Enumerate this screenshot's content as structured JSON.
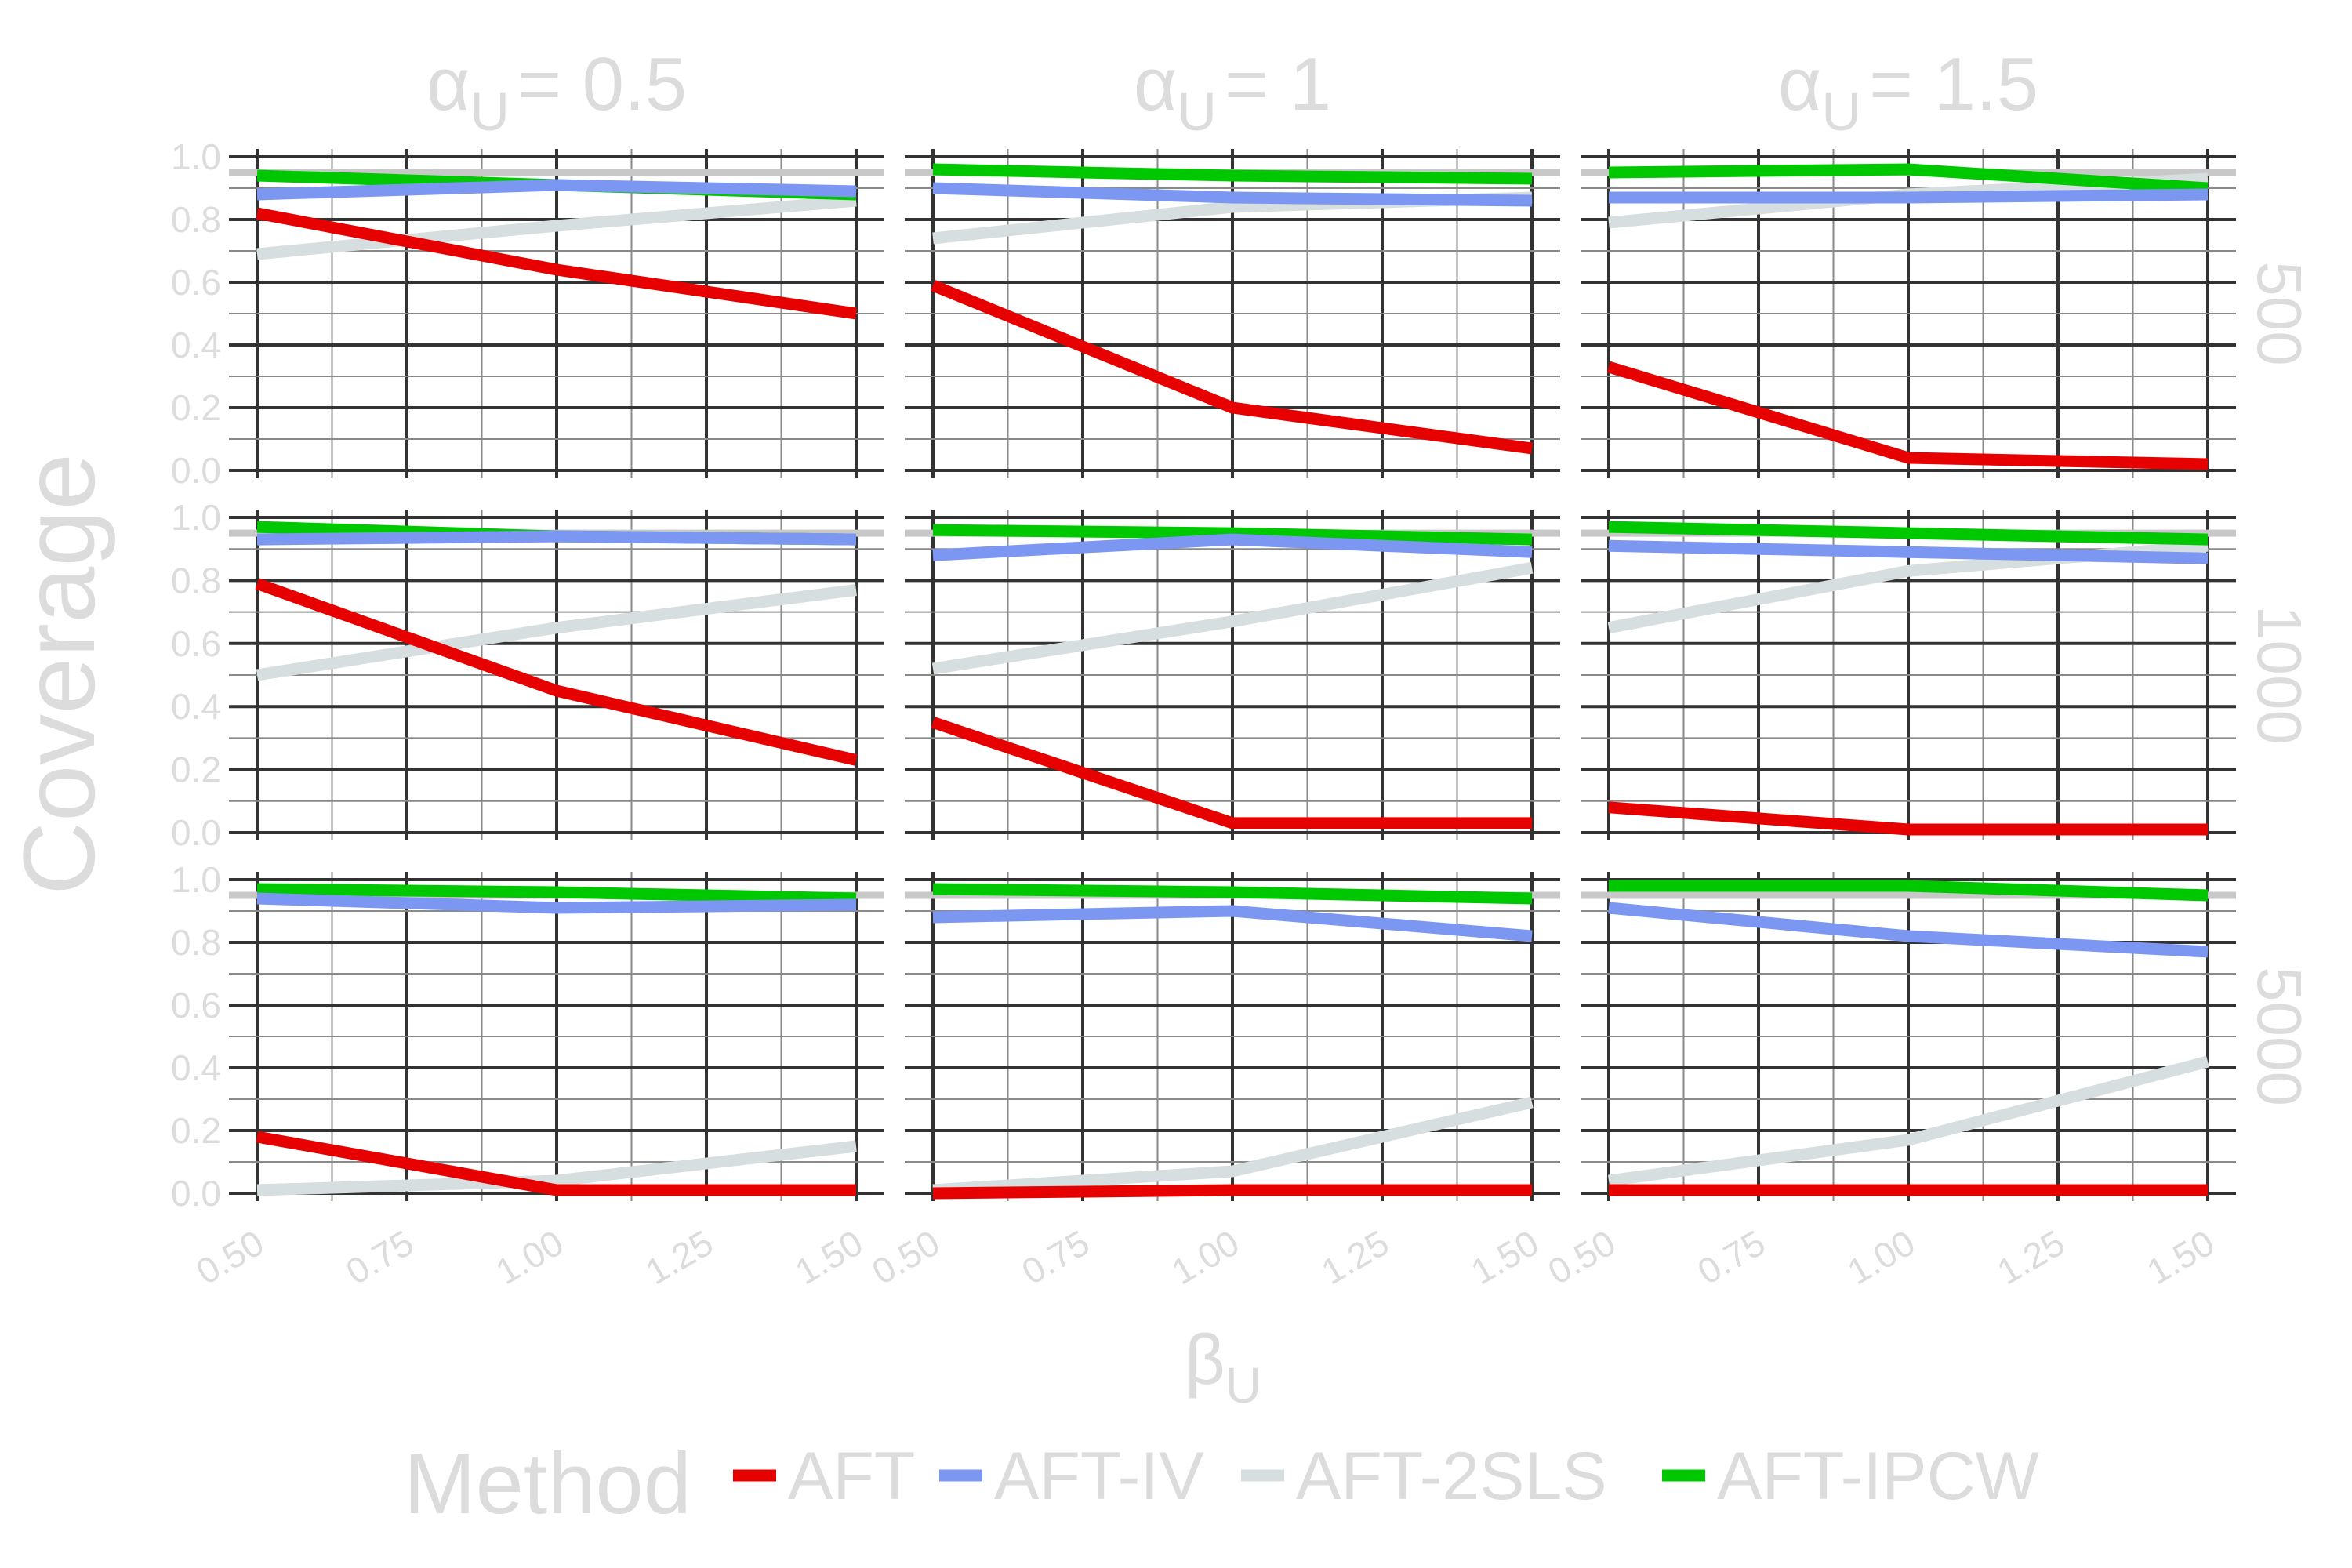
{
  "chart_data": {
    "type": "line",
    "xlabel": "β",
    "xlabel_sub": "U",
    "ylabel": "Coverage",
    "ylim": [
      0,
      1
    ],
    "y_ticks": [
      "0.0",
      "0.2",
      "0.4",
      "0.6",
      "0.8",
      "1.0"
    ],
    "x_ticks": [
      "0.50",
      "0.75",
      "1.00",
      "1.25",
      "1.50"
    ],
    "x_tick_values": [
      0.5,
      0.75,
      1.0,
      1.25,
      1.5
    ],
    "reference_line": 0.95,
    "grid": true,
    "legend": {
      "title": "Method",
      "position": "bottom",
      "entries": [
        {
          "label": "AFT",
          "color": "#e60000"
        },
        {
          "label": "AFT-IV",
          "color": "#7b97f2"
        },
        {
          "label": "AFT-2SLS",
          "color": "#d6dedf"
        },
        {
          "label": "AFT-IPCW",
          "color": "#00c800"
        }
      ]
    },
    "columns": [
      {
        "sym": "α",
        "sub": "U",
        "value": "= 0.5"
      },
      {
        "sym": "α",
        "sub": "U",
        "value": "= 1"
      },
      {
        "sym": "α",
        "sub": "U",
        "value": "= 1.5"
      }
    ],
    "rows": [
      "500",
      "1000",
      "5000"
    ],
    "x": [
      0.5,
      1.0,
      1.5
    ],
    "panels": [
      [
        {
          "AFT": [
            0.82,
            0.64,
            0.5
          ],
          "AFT-IV": [
            0.88,
            0.91,
            0.89
          ],
          "AFT-2SLS": [
            0.69,
            0.78,
            0.86
          ],
          "AFT-IPCW": [
            0.94,
            0.91,
            0.88
          ]
        },
        {
          "AFT": [
            0.59,
            0.2,
            0.07
          ],
          "AFT-IV": [
            0.9,
            0.87,
            0.86
          ],
          "AFT-2SLS": [
            0.74,
            0.84,
            0.87
          ],
          "AFT-IPCW": [
            0.96,
            0.94,
            0.93
          ]
        },
        {
          "AFT": [
            0.33,
            0.04,
            0.02
          ],
          "AFT-IV": [
            0.87,
            0.87,
            0.88
          ],
          "AFT-2SLS": [
            0.79,
            0.88,
            0.93
          ],
          "AFT-IPCW": [
            0.95,
            0.96,
            0.9
          ]
        }
      ],
      [
        {
          "AFT": [
            0.79,
            0.45,
            0.23
          ],
          "AFT-IV": [
            0.93,
            0.94,
            0.93
          ],
          "AFT-2SLS": [
            0.5,
            0.65,
            0.77
          ],
          "AFT-IPCW": [
            0.97,
            0.94,
            0.93
          ]
        },
        {
          "AFT": [
            0.35,
            0.03,
            0.03
          ],
          "AFT-IV": [
            0.88,
            0.93,
            0.89
          ],
          "AFT-2SLS": [
            0.52,
            0.67,
            0.84
          ],
          "AFT-IPCW": [
            0.96,
            0.95,
            0.93
          ]
        },
        {
          "AFT": [
            0.08,
            0.01,
            0.01
          ],
          "AFT-IV": [
            0.91,
            0.89,
            0.87
          ],
          "AFT-2SLS": [
            0.65,
            0.83,
            0.91
          ],
          "AFT-IPCW": [
            0.97,
            0.95,
            0.93
          ]
        }
      ],
      [
        {
          "AFT": [
            0.18,
            0.01,
            0.01
          ],
          "AFT-IV": [
            0.94,
            0.91,
            0.92
          ],
          "AFT-2SLS": [
            0.01,
            0.04,
            0.15
          ],
          "AFT-IPCW": [
            0.97,
            0.96,
            0.94
          ]
        },
        {
          "AFT": [
            0.0,
            0.01,
            0.01
          ],
          "AFT-IV": [
            0.88,
            0.9,
            0.82
          ],
          "AFT-2SLS": [
            0.01,
            0.07,
            0.29
          ],
          "AFT-IPCW": [
            0.97,
            0.96,
            0.94
          ]
        },
        {
          "AFT": [
            0.01,
            0.01,
            0.01
          ],
          "AFT-IV": [
            0.91,
            0.82,
            0.77
          ],
          "AFT-2SLS": [
            0.04,
            0.17,
            0.42
          ],
          "AFT-IPCW": [
            0.98,
            0.98,
            0.95
          ]
        }
      ]
    ]
  }
}
